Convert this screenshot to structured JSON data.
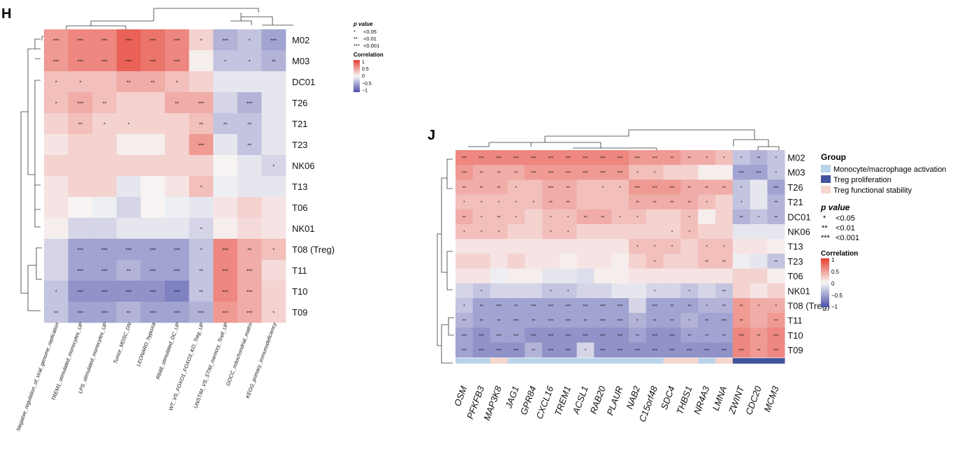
{
  "panels": {
    "h": {
      "label": "H"
    },
    "j": {
      "label": "J"
    }
  },
  "legend": {
    "pvalue_title": "p value",
    "pvalue_items": [
      {
        "stars": "*",
        "text": "<0.05"
      },
      {
        "stars": "**",
        "text": "<0.01"
      },
      {
        "stars": "***",
        "text": "<0.001"
      }
    ],
    "correlation_title": "Correlation",
    "correlation_ticks": [
      "1",
      "0.5",
      "0",
      "−0.5",
      "−1"
    ],
    "group_title": "Group",
    "groups": [
      {
        "name": "Monocyte/macrophage activation",
        "color": "#b9d3ea"
      },
      {
        "name": "Treg proliferation",
        "color": "#41539a"
      },
      {
        "name": "Treg functional stability",
        "color": "#f5d6cd"
      }
    ]
  },
  "colors": {
    "negative": "#4b4ea8",
    "zero": "#f7f7f7",
    "positive": "#e63c2f"
  },
  "chart_data": [
    {
      "type": "heatmap",
      "panel": "H",
      "title": "",
      "rows": [
        "M02",
        "M03",
        "DC01",
        "T26",
        "T21",
        "T23",
        "NK06",
        "T13",
        "T06",
        "NK01",
        "T08 (Treg)",
        "T11",
        "T10",
        "T09"
      ],
      "columns": [
        "Negative_regulation_of_viral_genome_replication",
        "TREM1_stimulated_monocytes_UP",
        "LPS_stimulated_monocytes_UP",
        "Tumor_MDSC_DN",
        "LEONARD_hypoxia",
        "R848_stimulated_DC_UP",
        "WT_VS_FOXO1_FOXO3_KO_Treg_UP",
        "UNSTIM_VS_STIM_memory_Tcell_UP",
        "GOCC_mitochondrial_matrix",
        "KEGG_primary_immunodeficiency"
      ],
      "values": [
        [
          0.5,
          0.6,
          0.6,
          0.8,
          0.7,
          0.6,
          0.2,
          -0.4,
          -0.3,
          -0.5
        ],
        [
          0.5,
          0.6,
          0.6,
          0.8,
          0.7,
          0.6,
          0.05,
          -0.3,
          -0.3,
          -0.4
        ],
        [
          0.3,
          0.3,
          0.3,
          0.4,
          0.4,
          0.3,
          0.2,
          -0.1,
          -0.1,
          -0.1
        ],
        [
          0.3,
          0.4,
          0.3,
          0.2,
          0.2,
          0.4,
          0.4,
          -0.2,
          -0.4,
          -0.1
        ],
        [
          0.2,
          0.3,
          0.2,
          0.2,
          0.2,
          0.2,
          0.3,
          -0.3,
          -0.3,
          -0.1
        ],
        [
          0.1,
          0.2,
          0.2,
          0.05,
          0.05,
          0.2,
          0.5,
          -0.1,
          -0.3,
          -0.1
        ],
        [
          0.2,
          0.2,
          0.2,
          0.2,
          0.2,
          0.2,
          0.2,
          0.02,
          -0.1,
          -0.2
        ],
        [
          0.1,
          0.2,
          0.2,
          -0.1,
          0.02,
          0.1,
          0.3,
          -0.05,
          -0.1,
          -0.1
        ],
        [
          0.1,
          0.02,
          -0.05,
          -0.2,
          0.02,
          -0.05,
          -0.1,
          0.1,
          0.2,
          0.1
        ],
        [
          0.05,
          -0.2,
          -0.2,
          -0.1,
          -0.1,
          -0.1,
          -0.2,
          0.05,
          0.15,
          0.1
        ],
        [
          -0.2,
          -0.5,
          -0.5,
          -0.5,
          -0.5,
          -0.5,
          -0.3,
          0.6,
          0.4,
          0.3
        ],
        [
          -0.2,
          -0.5,
          -0.5,
          -0.4,
          -0.5,
          -0.5,
          -0.3,
          0.6,
          0.4,
          0.15
        ],
        [
          -0.3,
          -0.6,
          -0.6,
          -0.6,
          -0.6,
          -0.7,
          -0.3,
          0.6,
          0.4,
          0.2
        ],
        [
          -0.3,
          -0.5,
          -0.5,
          -0.4,
          -0.5,
          -0.5,
          -0.4,
          0.5,
          0.4,
          0.2
        ]
      ],
      "significance": [
        [
          "***",
          "***",
          "***",
          "***",
          "***",
          "***",
          "*",
          "***",
          "*",
          "***"
        ],
        [
          "***",
          "***",
          "***",
          "***",
          "***",
          "***",
          "",
          "*",
          "*",
          "**"
        ],
        [
          "*",
          "*",
          "",
          "**",
          "**",
          "*",
          "",
          "",
          "",
          ""
        ],
        [
          "*",
          "***",
          "**",
          "",
          "",
          "**",
          "***",
          "",
          "***",
          ""
        ],
        [
          "",
          "**",
          "*",
          "*",
          "",
          "",
          "**",
          "**",
          "**",
          ""
        ],
        [
          "",
          "",
          "",
          "",
          "",
          "",
          "***",
          "",
          "**",
          ""
        ],
        [
          "",
          "",
          "",
          "",
          "",
          "",
          "",
          "",
          "",
          "*"
        ],
        [
          "",
          "",
          "",
          "",
          "",
          "",
          "*",
          "",
          "",
          ""
        ],
        [
          "",
          "",
          "",
          "",
          "",
          "",
          "",
          "",
          "",
          ""
        ],
        [
          "",
          "",
          "",
          "",
          "",
          "",
          "*",
          "",
          "",
          ""
        ],
        [
          "",
          "***",
          "***",
          "***",
          "***",
          "***",
          "*",
          "***",
          "**",
          "*"
        ],
        [
          "",
          "***",
          "***",
          "**",
          "***",
          "***",
          "**",
          "***",
          "***",
          ""
        ],
        [
          "*",
          "***",
          "***",
          "***",
          "***",
          "***",
          "**",
          "***",
          "***",
          ""
        ],
        [
          "**",
          "***",
          "***",
          "**",
          "***",
          "***",
          "***",
          "***",
          "***",
          "*"
        ]
      ],
      "color_range": [
        -1,
        1
      ]
    },
    {
      "type": "heatmap",
      "panel": "J",
      "title": "",
      "rows": [
        "M02",
        "M03",
        "T26",
        "T21",
        "DC01",
        "NK06",
        "T13",
        "T23",
        "T06",
        "NK01",
        "T08 (Treg)",
        "T11",
        "T10",
        "T09"
      ],
      "columns": [
        "OSM",
        "PFKFB3",
        "MAP3K8",
        "JAG1",
        "GPR84",
        "CXCL16",
        "TREM1",
        "ACSL1",
        "RAB20",
        "PLAUR",
        "NAB2",
        "C15orf48",
        "SDC4",
        "THBS1",
        "NR4A3",
        "LMNA",
        "ZWINT",
        "CDC20",
        "MCM3"
      ],
      "column_groups": [
        "Monocyte/macrophage activation",
        "Monocyte/macrophage activation",
        "Treg functional stability",
        "Monocyte/macrophage activation",
        "Monocyte/macrophage activation",
        "Monocyte/macrophage activation",
        "Monocyte/macrophage activation",
        "Monocyte/macrophage activation",
        "Monocyte/macrophage activation",
        "Monocyte/macrophage activation",
        "Monocyte/macrophage activation",
        "Monocyte/macrophage activation",
        "Treg functional stability",
        "Treg functional stability",
        "Monocyte/macrophage activation",
        "Treg functional stability",
        "Treg proliferation",
        "Treg proliferation",
        "Treg proliferation"
      ],
      "values": [
        [
          0.6,
          0.6,
          0.6,
          0.6,
          0.6,
          0.6,
          0.6,
          0.6,
          0.6,
          0.6,
          0.5,
          0.5,
          0.5,
          0.4,
          0.4,
          0.3,
          -0.3,
          -0.4,
          -0.3
        ],
        [
          0.5,
          0.4,
          0.4,
          0.4,
          0.5,
          0.5,
          0.5,
          0.5,
          0.5,
          0.5,
          0.3,
          0.3,
          0.2,
          0.2,
          0.05,
          0.05,
          -0.5,
          -0.5,
          -0.3
        ],
        [
          0.4,
          0.4,
          0.4,
          0.3,
          0.3,
          0.4,
          0.4,
          0.3,
          0.3,
          0.3,
          0.5,
          0.5,
          0.5,
          0.4,
          0.4,
          0.4,
          -0.3,
          -0.1,
          -0.5
        ],
        [
          0.3,
          0.3,
          0.3,
          0.3,
          0.3,
          0.4,
          0.4,
          0.3,
          0.3,
          0.3,
          0.4,
          0.4,
          0.4,
          0.4,
          0.3,
          0.2,
          -0.3,
          -0.1,
          -0.4
        ],
        [
          0.4,
          0.3,
          0.3,
          0.3,
          0.2,
          0.3,
          0.3,
          0.4,
          0.4,
          0.3,
          0.3,
          0.2,
          0.2,
          0.3,
          0.05,
          0.2,
          -0.4,
          -0.3,
          -0.4
        ],
        [
          0.3,
          0.3,
          0.3,
          0.2,
          0.2,
          0.3,
          0.3,
          0.2,
          0.2,
          0.2,
          0.2,
          0.2,
          0.2,
          0.3,
          0.2,
          0.2,
          -0.1,
          -0.1,
          -0.1
        ],
        [
          0.1,
          0.1,
          0.1,
          0.1,
          0.1,
          0.1,
          0.1,
          0.1,
          0.1,
          0.1,
          0.3,
          0.3,
          0.3,
          0.2,
          0.3,
          0.3,
          0.1,
          0.1,
          0.05
        ],
        [
          0.2,
          0.2,
          0.1,
          0.2,
          0.1,
          0.1,
          0.05,
          0.1,
          0.1,
          0.05,
          0.2,
          0.3,
          0.2,
          0.2,
          0.3,
          0.3,
          -0.05,
          -0.1,
          -0.3
        ],
        [
          0.1,
          0.1,
          -0.05,
          0.05,
          0.05,
          -0.1,
          -0.1,
          -0.15,
          0.05,
          0.05,
          0.1,
          0.1,
          0.1,
          0.1,
          0.1,
          0.1,
          0.2,
          0.2,
          0.05
        ],
        [
          -0.2,
          -0.3,
          -0.2,
          -0.2,
          -0.2,
          -0.3,
          -0.3,
          -0.2,
          -0.2,
          -0.1,
          -0.1,
          -0.2,
          -0.2,
          -0.3,
          -0.2,
          -0.3,
          0.2,
          0.1,
          0.2
        ],
        [
          -0.3,
          -0.5,
          -0.5,
          -0.5,
          -0.5,
          -0.5,
          -0.5,
          -0.5,
          -0.5,
          -0.5,
          -0.2,
          -0.5,
          -0.5,
          -0.5,
          -0.4,
          -0.4,
          0.5,
          0.4,
          0.4
        ],
        [
          -0.4,
          -0.5,
          -0.5,
          -0.5,
          -0.5,
          -0.5,
          -0.5,
          -0.5,
          -0.5,
          -0.5,
          -0.4,
          -0.5,
          -0.5,
          -0.4,
          -0.5,
          -0.5,
          0.5,
          0.4,
          0.5
        ],
        [
          -0.5,
          -0.6,
          -0.5,
          -0.5,
          -0.6,
          -0.6,
          -0.6,
          -0.6,
          -0.6,
          -0.6,
          -0.5,
          -0.6,
          -0.6,
          -0.5,
          -0.5,
          -0.5,
          0.6,
          0.5,
          0.6
        ],
        [
          -0.5,
          -0.6,
          -0.6,
          -0.6,
          -0.4,
          -0.6,
          -0.6,
          -0.2,
          -0.6,
          -0.6,
          -0.6,
          -0.6,
          -0.6,
          -0.6,
          -0.6,
          -0.6,
          0.6,
          0.5,
          0.6
        ]
      ],
      "significance": [
        [
          "***",
          "***",
          "***",
          "***",
          "***",
          "***",
          "***",
          "***",
          "***",
          "***",
          "***",
          "***",
          "**",
          "**",
          "*",
          "*",
          "*",
          "**",
          "*"
        ],
        [
          "***",
          "**",
          "**",
          "**",
          "***",
          "***",
          "***",
          "***",
          "***",
          "***",
          "*",
          "*",
          "",
          "",
          "",
          "",
          "***",
          "***",
          "*"
        ],
        [
          "**",
          "**",
          "**",
          "*",
          "",
          "***",
          "**",
          "",
          "*",
          "*",
          "***",
          "***",
          "***",
          "**",
          "**",
          "**",
          "*",
          "",
          "***"
        ],
        [
          "*",
          "*",
          "*",
          "*",
          "*",
          "**",
          "**",
          "",
          "",
          "",
          "**",
          "**",
          "**",
          "**",
          "*",
          "",
          "*",
          "",
          "**"
        ],
        [
          "**",
          "*",
          "**",
          "*",
          "",
          "*",
          "*",
          "**",
          "**",
          "*",
          "*",
          "",
          "",
          "*",
          "",
          "",
          "**",
          "*",
          "**"
        ],
        [
          "*",
          "*",
          "*",
          "",
          "",
          "*",
          "*",
          "",
          "",
          "",
          "",
          "",
          "*",
          "*",
          "",
          "",
          "",
          "",
          ""
        ],
        [
          "",
          "",
          "",
          "",
          "",
          "",
          "",
          "",
          "",
          "",
          "*",
          "*",
          "*",
          "",
          "*",
          "*",
          "",
          "",
          ""
        ],
        [
          "",
          "",
          "",
          "",
          "",
          "",
          "",
          "",
          "",
          "",
          "",
          "*",
          "",
          "",
          "**",
          "**",
          "",
          "",
          "**"
        ],
        [
          "",
          "",
          "",
          "",
          "",
          "",
          "",
          "",
          "",
          "",
          "",
          "",
          "",
          "",
          "",
          "",
          "",
          "",
          ""
        ],
        [
          "",
          "*",
          "",
          "",
          "",
          "*",
          "*",
          "",
          "",
          "",
          "",
          "*",
          "",
          "*",
          "",
          "**",
          "",
          "",
          ""
        ],
        [
          "*",
          "**",
          "***",
          "**",
          "***",
          "***",
          "***",
          "***",
          "***",
          "***",
          "",
          "***",
          "**",
          "**",
          "*",
          "**",
          "**",
          "*",
          "*"
        ],
        [
          "**",
          "**",
          "**",
          "***",
          "**",
          "***",
          "***",
          "**",
          "***",
          "***",
          "*",
          "**",
          "**",
          "*",
          "**",
          "***",
          "**",
          "",
          "**"
        ],
        [
          "***",
          "***",
          "***",
          "***",
          "***",
          "***",
          "***",
          "***",
          "***",
          "***",
          "**",
          "***",
          "***",
          "**",
          "**",
          "**",
          "***",
          "**",
          "***"
        ],
        [
          "***",
          "***",
          "***",
          "***",
          "**",
          "***",
          "***",
          "*",
          "***",
          "***",
          "***",
          "***",
          "***",
          "***",
          "***",
          "***",
          "***",
          "**",
          "***"
        ]
      ],
      "color_range": [
        -1,
        1
      ]
    }
  ]
}
